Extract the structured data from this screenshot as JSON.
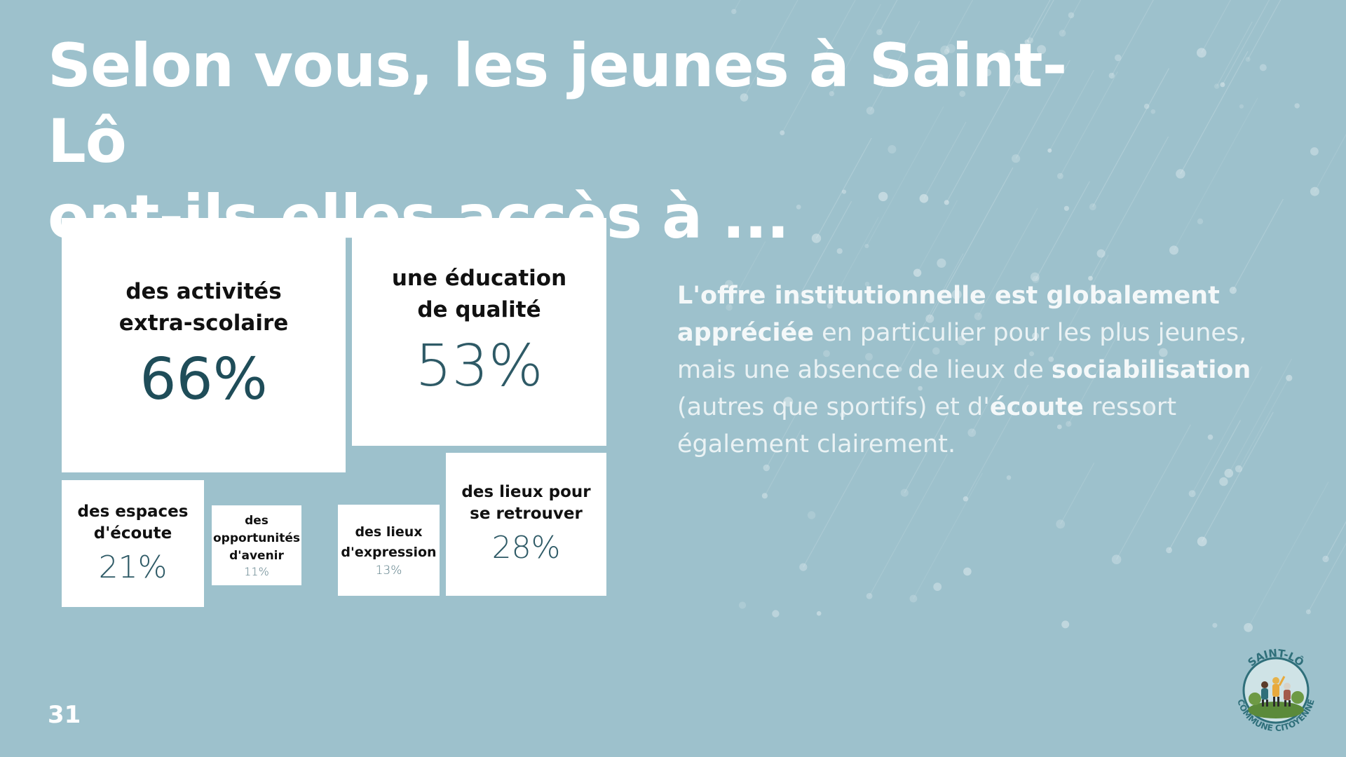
{
  "title": {
    "line1": "Selon vous, les jeunes à Saint-Lô",
    "line2": "ont-ils.elles accès à ..."
  },
  "tiles": [
    {
      "label": "des activités extra-scolaire",
      "value": "66%"
    },
    {
      "label": "une éducation de qualité",
      "value": "53%"
    },
    {
      "label": "des espaces d'écoute",
      "value": "21%"
    },
    {
      "label": "des opportunités d'avenir",
      "value": "11%"
    },
    {
      "label": "des lieux d'expression",
      "value": "13%"
    },
    {
      "label": "des lieux pour se retrouver",
      "value": "28%"
    }
  ],
  "summary": {
    "bold1": "L'offre institutionnelle est globalement appréciée",
    "text1": " en particulier pour les plus jeunes, mais une absence de lieux de ",
    "bold2": "sociabilisation",
    "text2": " (autres que sportifs) et d'",
    "bold3": "écoute",
    "text3": " ressort également clairement."
  },
  "page_number": "31",
  "logo": {
    "top_text": "SAINT-LÔ",
    "bottom_text": "COMMUNE CITOYENNE"
  },
  "colors": {
    "background": "#9dc1cc",
    "percent_dark": "#2e5a66",
    "logo_ring": "#2f6f7a",
    "logo_green": "#5b8a3a"
  }
}
